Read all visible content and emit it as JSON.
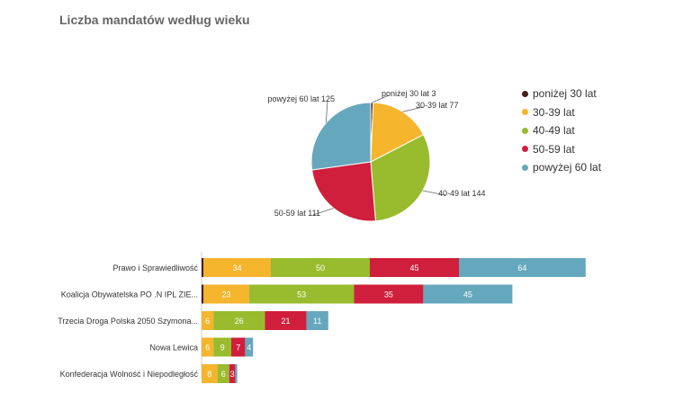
{
  "chart_data": [
    {
      "type": "pie",
      "title": "Liczba mandatów według wieku",
      "slices": [
        {
          "label": "poniżej 30 lat",
          "value": 3,
          "data_label": "poniżej 30 lat 3",
          "color": "#4a1e14"
        },
        {
          "label": "30-39 lat",
          "value": 77,
          "data_label": "30-39 lat 77",
          "color": "#f5b52c"
        },
        {
          "label": "40-49 lat",
          "value": 144,
          "data_label": "40-49 lat 144",
          "color": "#99bb2e"
        },
        {
          "label": "50-59 lat",
          "value": 111,
          "data_label": "50-59 lat 111",
          "color": "#d01f3c"
        },
        {
          "label": "powyżej 60 lat",
          "value": 125,
          "data_label": "powyżej 60 lat 125",
          "color": "#65a8bd"
        }
      ],
      "legend": {
        "placement": "right",
        "entries": [
          "poniżej 30 lat",
          "30-39 lat",
          "40-49 lat",
          "50-59 lat",
          "powyżej 60 lat"
        ]
      }
    },
    {
      "type": "bar",
      "orientation": "horizontal",
      "stacked": true,
      "categories": [
        "Prawo i Sprawiedliwość",
        "Koalicja Obywatelska PO .N IPL ZIE...",
        "Trzecia Droga Polska 2050 Szymona...",
        "Nowa Lewica",
        "Konfederacja Wolność i Niepodległość"
      ],
      "series": [
        {
          "name": "poniżej 30 lat",
          "color": "#4a1e14",
          "values": [
            1,
            1,
            0,
            0,
            0
          ],
          "labels": [
            "",
            "",
            "",
            "",
            ""
          ]
        },
        {
          "name": "30-39 lat",
          "color": "#f5b52c",
          "values": [
            34,
            23,
            6,
            6,
            8
          ],
          "labels": [
            "34",
            "23",
            "6",
            "6",
            "8"
          ]
        },
        {
          "name": "40-49 lat",
          "color": "#99bb2e",
          "values": [
            50,
            53,
            26,
            9,
            6
          ],
          "labels": [
            "50",
            "53",
            "26",
            "9",
            "6"
          ]
        },
        {
          "name": "50-59 lat",
          "color": "#d01f3c",
          "values": [
            45,
            35,
            21,
            7,
            3
          ],
          "labels": [
            "45",
            "35",
            "21",
            "7",
            "3"
          ]
        },
        {
          "name": "powyżej 60 lat",
          "color": "#65a8bd",
          "values": [
            64,
            45,
            11,
            4,
            1
          ],
          "labels": [
            "64",
            "45",
            "11",
            "4",
            ""
          ]
        }
      ],
      "grid": false,
      "legend": {
        "placement": "none"
      }
    }
  ]
}
